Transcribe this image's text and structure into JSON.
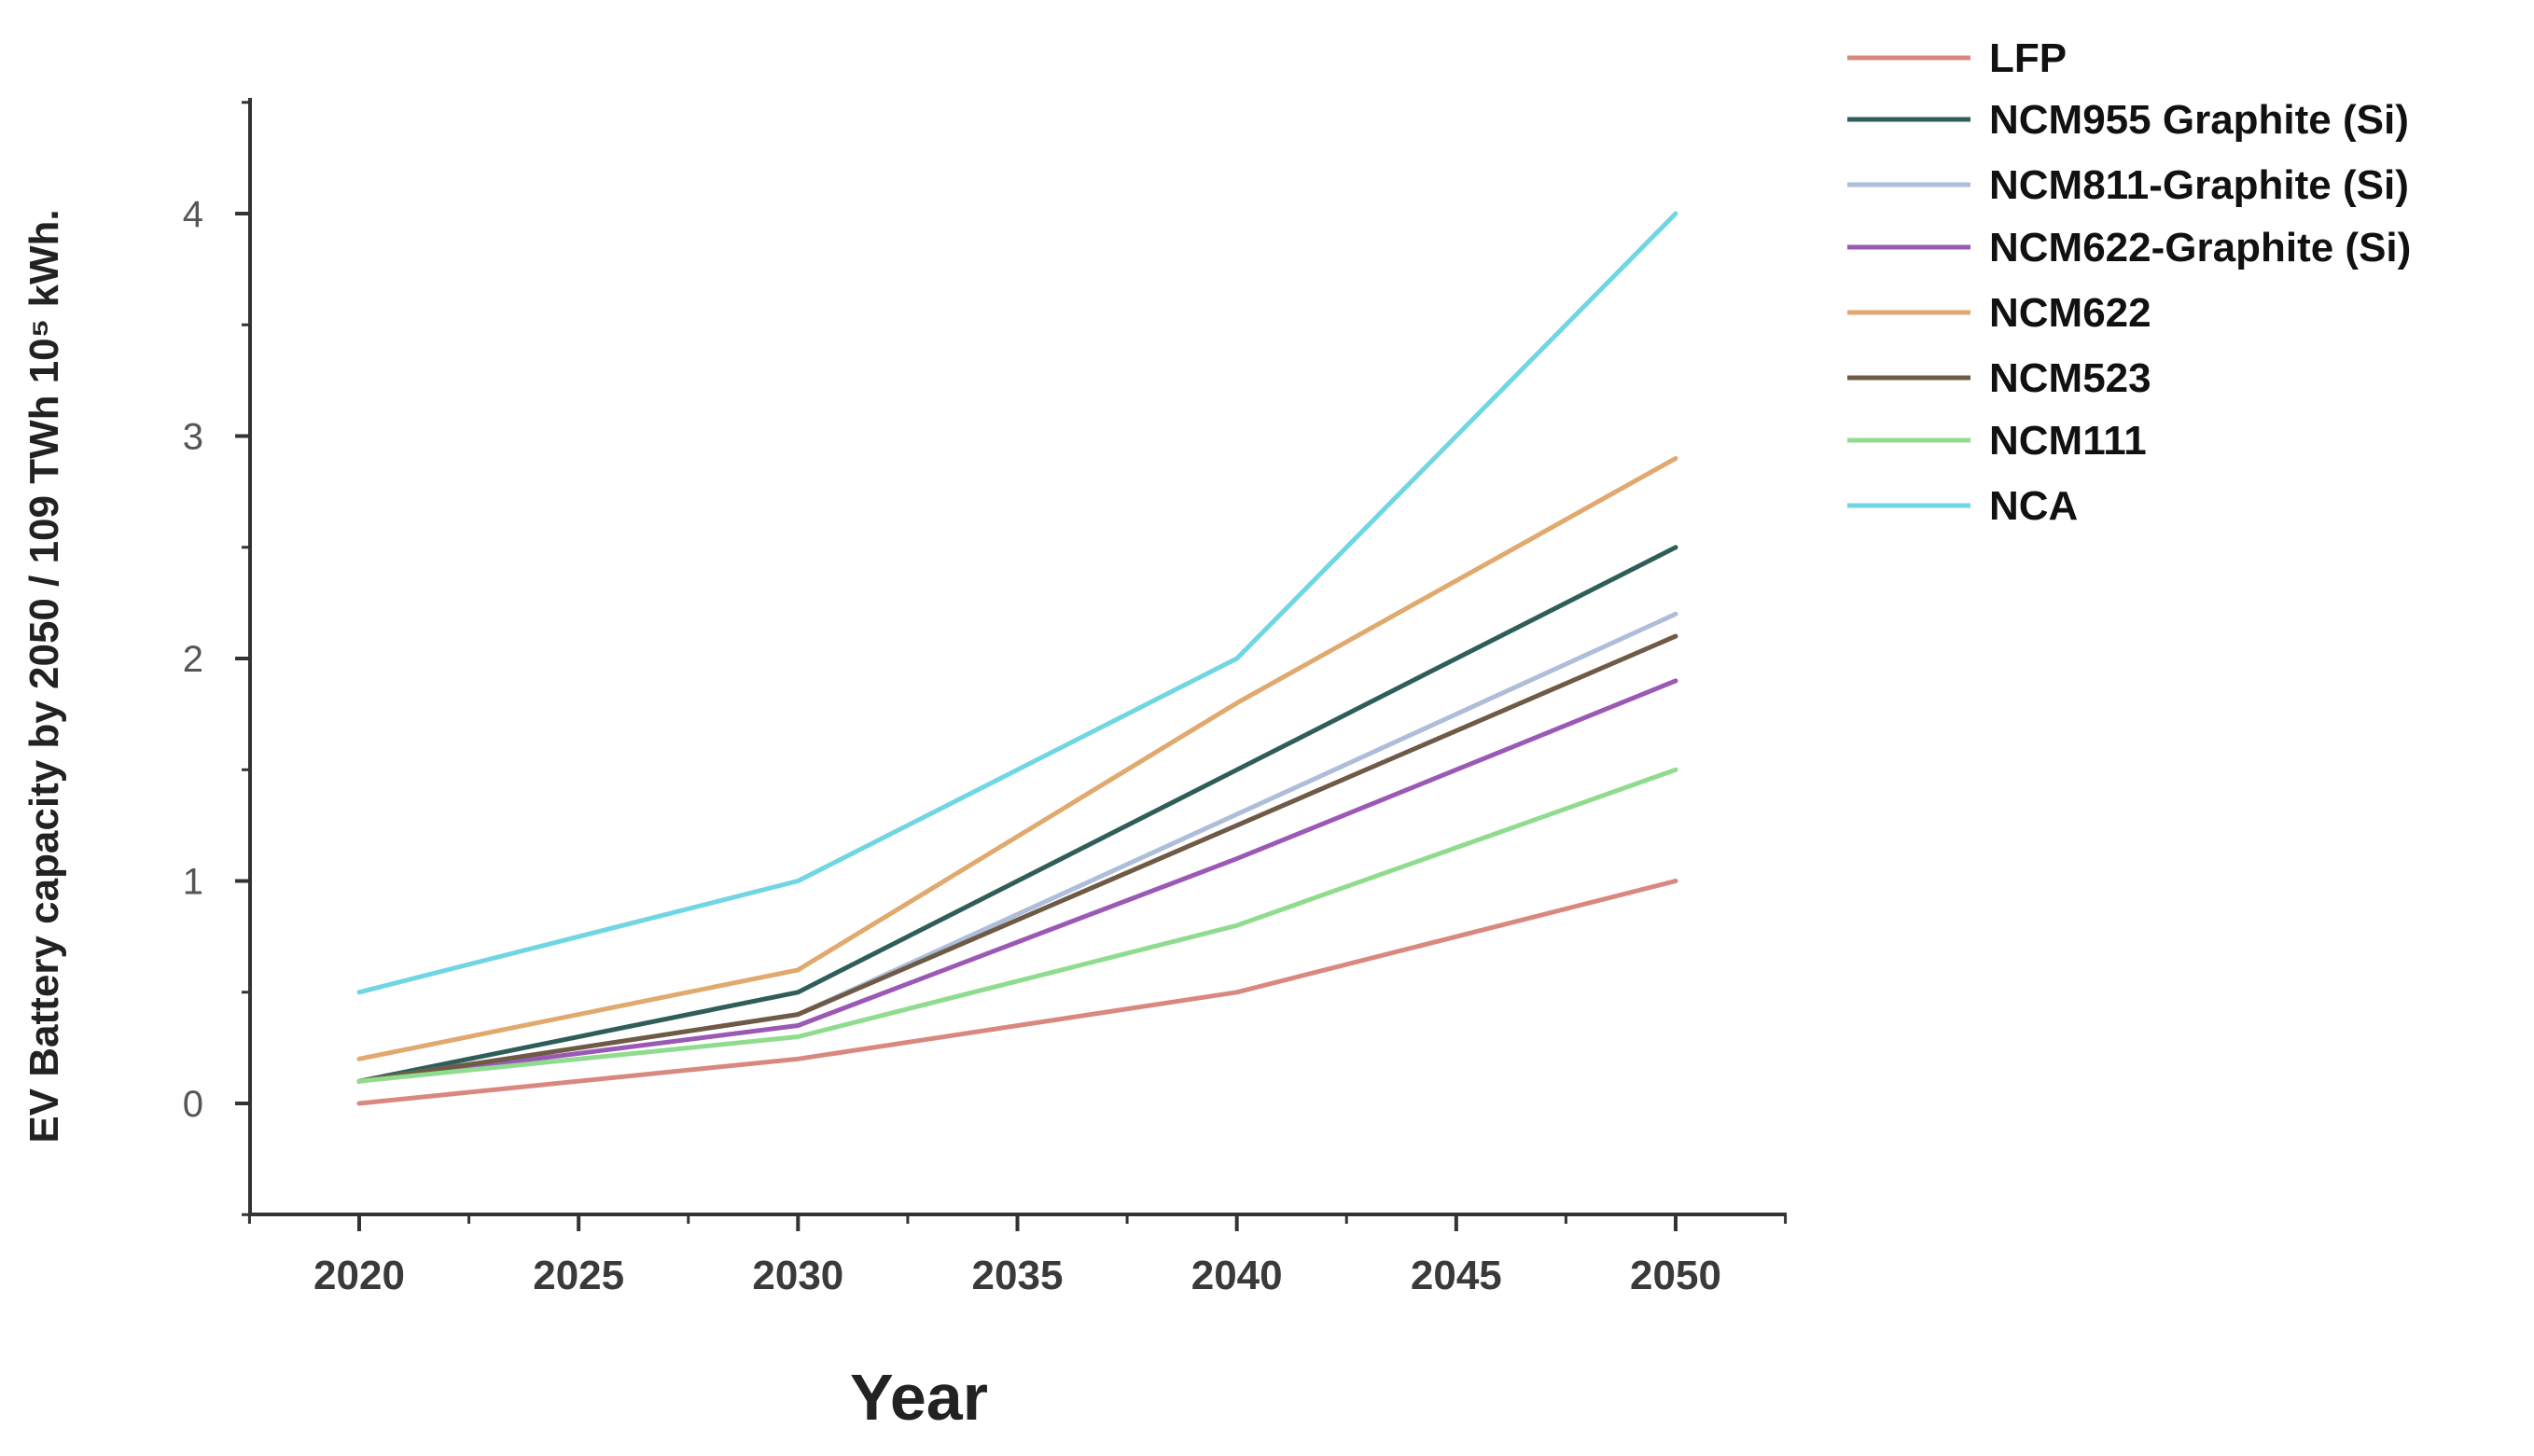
{
  "chart_data": {
    "type": "line",
    "title": "",
    "xlabel": "Year",
    "ylabel": "EV Battery capacity by 2050  /  109 TWh 10⁵ kWh.",
    "x": [
      2020,
      2030,
      2040,
      2050
    ],
    "xticks": [
      "2020",
      "2025",
      "2030",
      "2035",
      "2040",
      "2045",
      "2050"
    ],
    "yticks": [
      "0",
      "1",
      "2",
      "3",
      "4"
    ],
    "xlim": [
      2017.5,
      2052.5
    ],
    "ylim": [
      -0.5,
      4.5
    ],
    "grid": false,
    "legend_position": "top-right outside",
    "series": [
      {
        "name": "LFP",
        "color": "#d98880",
        "values": [
          0.0,
          0.2,
          0.5,
          1.0
        ]
      },
      {
        "name": "NCM955 Graphite (Si)",
        "color": "#2f5e5a",
        "values": [
          0.1,
          0.5,
          1.5,
          2.5
        ]
      },
      {
        "name": "NCM811-Graphite (Si)",
        "color": "#aebdd9",
        "values": [
          0.1,
          0.4,
          1.3,
          2.2
        ]
      },
      {
        "name": "NCM622-Graphite (Si)",
        "color": "#9b59b6",
        "values": [
          0.1,
          0.35,
          1.1,
          1.9
        ]
      },
      {
        "name": "NCM622",
        "color": "#e0a96d",
        "values": [
          0.2,
          0.6,
          1.8,
          2.9
        ]
      },
      {
        "name": "NCM523",
        "color": "#6e5a45",
        "values": [
          0.1,
          0.4,
          1.25,
          2.1
        ]
      },
      {
        "name": "NCM111",
        "color": "#8fdc8f",
        "values": [
          0.1,
          0.3,
          0.8,
          1.5
        ]
      },
      {
        "name": "NCA",
        "color": "#6fd6e2",
        "values": [
          0.5,
          1.0,
          2.0,
          4.0
        ]
      }
    ]
  }
}
